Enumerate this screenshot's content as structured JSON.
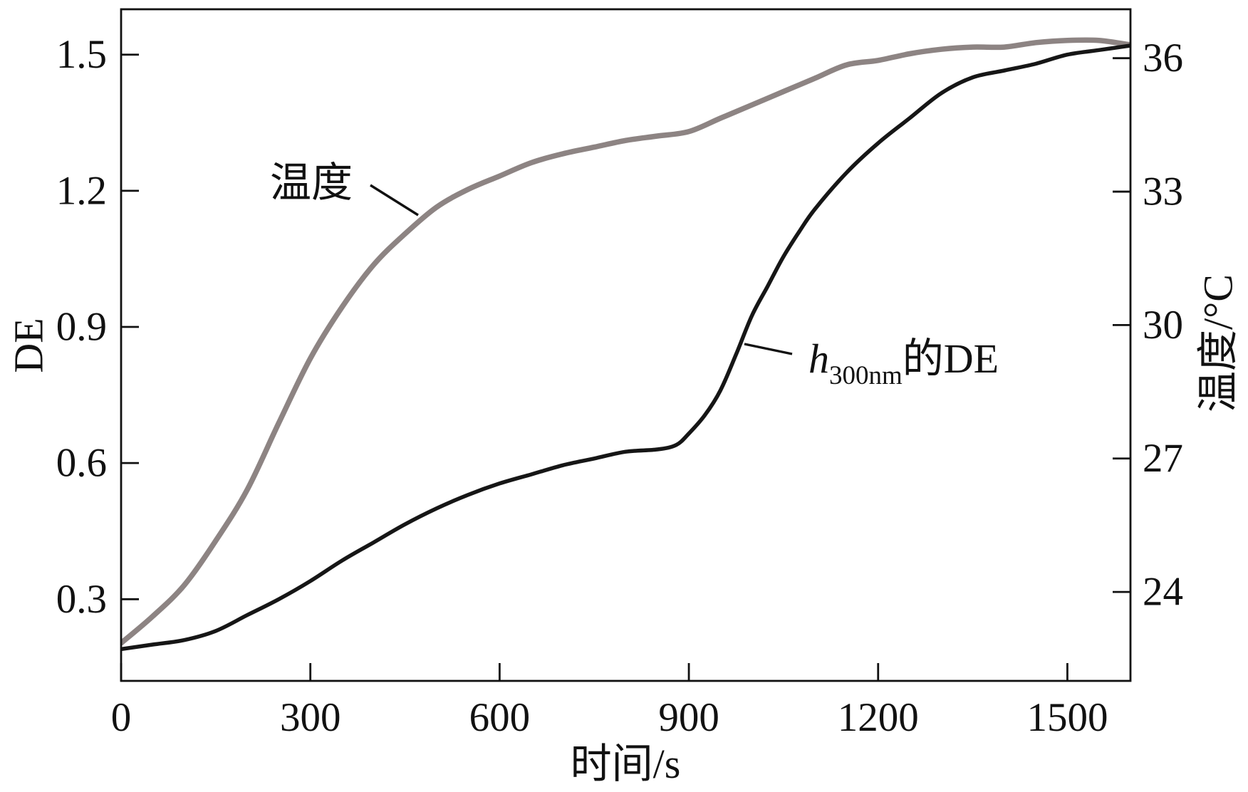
{
  "chart_data": {
    "type": "line",
    "title": "",
    "xlabel": "时间/s",
    "ylabel": "DE",
    "ylabel_right": "温度/°C",
    "xlim": [
      0,
      1600
    ],
    "ylim": [
      0.12,
      1.6
    ],
    "ylim_right": [
      22,
      37.1
    ],
    "xticks": [
      0,
      300,
      600,
      900,
      1200,
      1500
    ],
    "xtick_labels": [
      "0",
      "300",
      "600",
      "900",
      "1200",
      "1500"
    ],
    "yticks": [
      0.3,
      0.6,
      0.9,
      1.2,
      1.5
    ],
    "ytick_labels": [
      "0.3",
      "0.6",
      "0.9",
      "1.2",
      "1.5"
    ],
    "yticks_right": [
      24,
      27,
      30,
      33,
      36
    ],
    "ytick_labels_right": [
      "24",
      "27",
      "30",
      "33",
      "36"
    ],
    "grid": false,
    "legend": "none",
    "series": [
      {
        "name": "h300nm的DE",
        "name_format": [
          {
            "text": "h",
            "italic": true
          },
          {
            "text": "300nm",
            "subscript": true
          },
          {
            "text": "的DE"
          }
        ],
        "axis": "left",
        "color": "#161616",
        "x": [
          0,
          50,
          100,
          150,
          200,
          250,
          300,
          350,
          400,
          450,
          500,
          550,
          600,
          650,
          700,
          750,
          800,
          850,
          880,
          900,
          925,
          950,
          975,
          1000,
          1025,
          1050,
          1075,
          1100,
          1150,
          1200,
          1250,
          1300,
          1350,
          1400,
          1450,
          1500,
          1550,
          1600
        ],
        "values": [
          0.19,
          0.2,
          0.21,
          0.23,
          0.265,
          0.3,
          0.34,
          0.385,
          0.425,
          0.465,
          0.5,
          0.53,
          0.555,
          0.575,
          0.595,
          0.61,
          0.625,
          0.63,
          0.64,
          0.665,
          0.705,
          0.76,
          0.84,
          0.925,
          0.99,
          1.055,
          1.11,
          1.16,
          1.24,
          1.305,
          1.36,
          1.415,
          1.45,
          1.465,
          1.48,
          1.5,
          1.51,
          1.52
        ]
      },
      {
        "name": "温度",
        "axis": "right",
        "color": "#8d8483",
        "x": [
          0,
          50,
          100,
          150,
          200,
          250,
          300,
          350,
          400,
          450,
          500,
          550,
          600,
          650,
          700,
          750,
          800,
          850,
          900,
          950,
          1000,
          1050,
          1100,
          1150,
          1200,
          1250,
          1300,
          1350,
          1400,
          1450,
          1500,
          1550,
          1600
        ],
        "values": [
          22.85,
          23.45,
          24.15,
          25.15,
          26.3,
          27.8,
          29.25,
          30.4,
          31.35,
          32.05,
          32.65,
          33.05,
          33.35,
          33.65,
          33.85,
          34.0,
          34.15,
          34.25,
          34.35,
          34.65,
          34.95,
          35.25,
          35.55,
          35.85,
          35.95,
          36.1,
          36.2,
          36.25,
          36.25,
          36.35,
          36.4,
          36.4,
          36.3
        ]
      }
    ]
  }
}
